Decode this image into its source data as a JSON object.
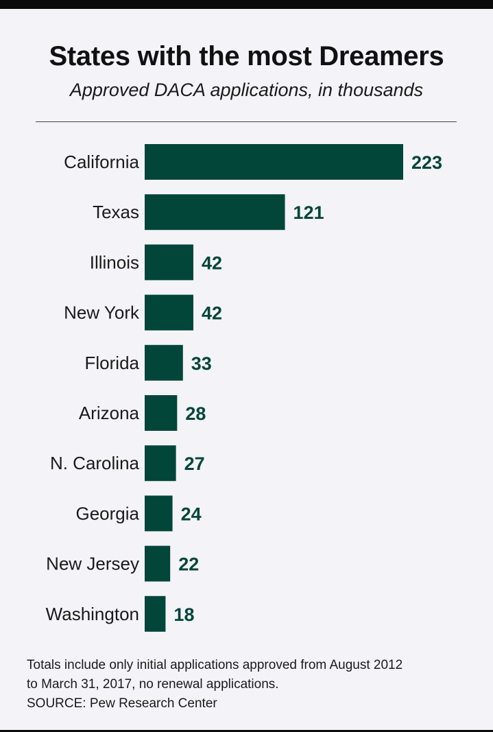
{
  "chart_data": {
    "type": "bar",
    "orientation": "horizontal",
    "title": "States with the most Dreamers",
    "subtitle": "Approved DACA applications, in thousands",
    "categories": [
      "California",
      "Texas",
      "Illinois",
      "New York",
      "Florida",
      "Arizona",
      "N. Carolina",
      "Georgia",
      "New Jersey",
      "Washington"
    ],
    "values": [
      223,
      121,
      42,
      42,
      33,
      28,
      27,
      24,
      22,
      18
    ],
    "xlim": [
      0,
      223
    ],
    "grid": false,
    "legend": "none",
    "bar_color": "#02463a"
  },
  "notes": {
    "line1": "Totals include only initial applications approved from August 2012",
    "line2": "to March 31, 2017, no renewal applications.",
    "source": "SOURCE: Pew Research Center"
  },
  "colors": {
    "background": "#f4f3f8",
    "bar": "#02463a",
    "border": "#0a0a0a"
  }
}
